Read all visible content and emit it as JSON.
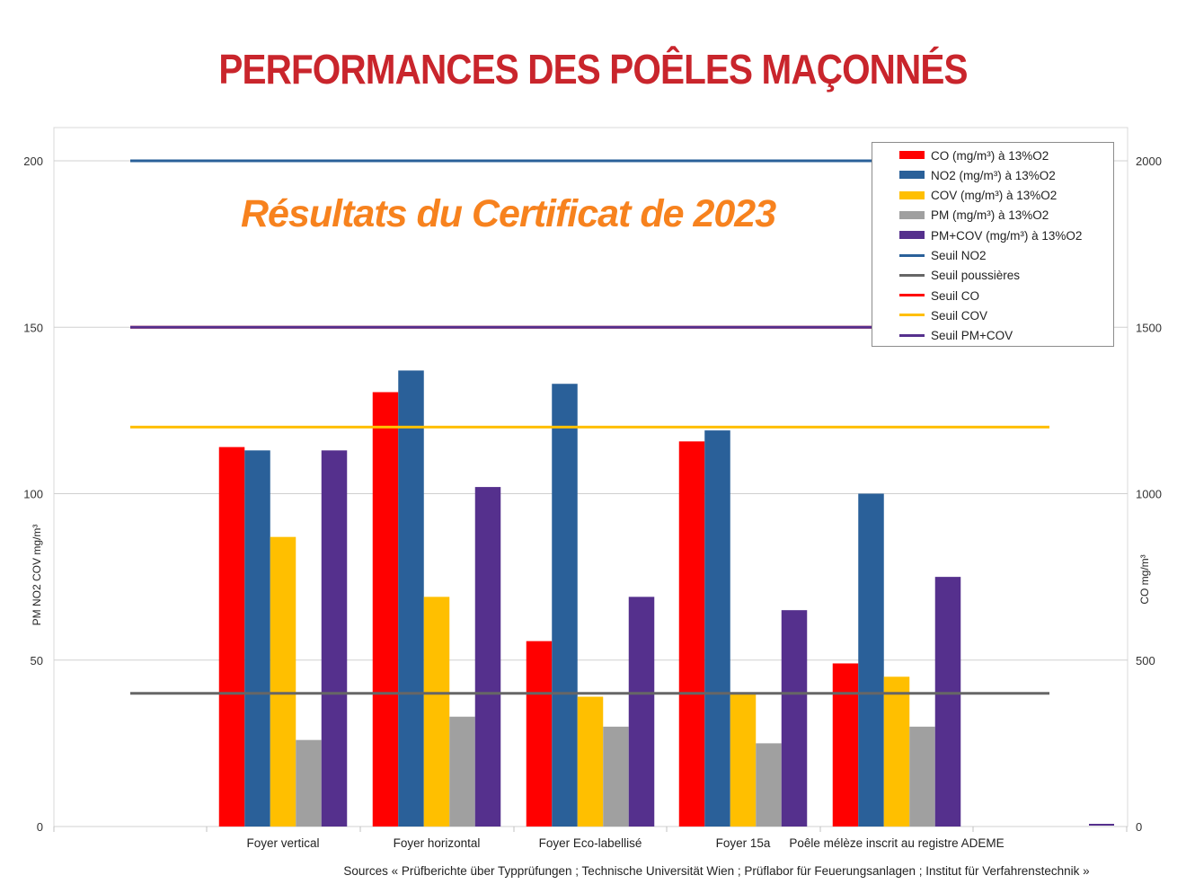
{
  "title": "PERFORMANCES DES POÊLES MAÇONNÉS",
  "subtitle": "Résultats du Certificat de 2023",
  "sources": "Sources « Prüfberichte über Typprüfungen ; Technische Universität Wien ; Prüflabor für Feuerungsanlagen ; Institut für Verfahrenstechnik »",
  "chart_data": {
    "type": "bar",
    "categories": [
      "Foyer vertical",
      "Foyer horizontal",
      "Foyer Eco-labellisé",
      "Foyer 15a",
      "Poêle mélèze inscrit au registre ADEME"
    ],
    "ylabel": "PM NO2 COV mg/m³",
    "y2label": "CO mg/m³",
    "ylim": [
      0,
      200
    ],
    "y2lim": [
      0,
      2000
    ],
    "yticks": [
      "0",
      "50",
      "100",
      "150",
      "200"
    ],
    "y2ticks": [
      "0",
      "500",
      "1000",
      "1500",
      "2000"
    ],
    "grid": true,
    "legend_position": "top-right",
    "series": [
      {
        "name": "CO (mg/m³) à 13%O2",
        "axis": "right",
        "color": "#ff0000",
        "values": [
          1140,
          1305,
          557,
          1157,
          490
        ]
      },
      {
        "name": "NO2 (mg/m³) à 13%O2",
        "axis": "left",
        "color": "#2a6099",
        "values": [
          113,
          137,
          133,
          119,
          100
        ]
      },
      {
        "name": "COV (mg/m³) à 13%O2",
        "axis": "left",
        "color": "#ffbf00",
        "values": [
          87,
          69,
          39,
          40,
          45
        ]
      },
      {
        "name": "PM (mg/m³) à 13%O2",
        "axis": "left",
        "color": "#a0a0a0",
        "values": [
          26,
          33,
          30,
          25,
          30
        ]
      },
      {
        "name": "PM+COV (mg/m³) à 13%O2",
        "axis": "left",
        "color": "#55308d",
        "values": [
          113,
          102,
          69,
          65,
          75
        ]
      }
    ],
    "thresholds": [
      {
        "name": "Seuil NO2",
        "color": "#2a6099",
        "value": 200
      },
      {
        "name": "Seuil poussières",
        "color": "#666666",
        "value": 40
      },
      {
        "name": "Seuil CO",
        "color": "#ff0000",
        "value": 1500,
        "axis": "right"
      },
      {
        "name": "Seuil COV",
        "color": "#ffbf00",
        "value": 120
      },
      {
        "name": "Seuil PM+COV",
        "color": "#55308d",
        "value": 150
      }
    ]
  }
}
